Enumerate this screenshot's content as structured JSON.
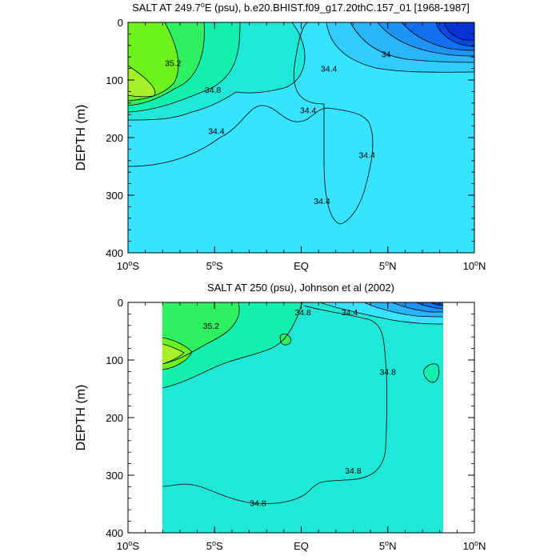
{
  "chart_data": [
    {
      "type": "contour",
      "title": "SALT AT 249.7°E (psu), b.e20.BHIST.f09_g17.20thC.157_01 [1968-1987]",
      "title_parts": {
        "pre": "SALT AT 249.7",
        "sup": "o",
        "post": "E (psu), b.e20.BHIST.f09_g17.20thC.157_01 [1968-1987]"
      },
      "ylabel": "DEPTH (m)",
      "xlim": [
        -10,
        10
      ],
      "ylim": [
        400,
        0
      ],
      "y_ticks": [
        "0",
        "100",
        "200",
        "300",
        "400"
      ],
      "x_ticks": [
        {
          "value": -10,
          "num": "10",
          "dir": "S"
        },
        {
          "value": -5,
          "num": "5",
          "dir": "S"
        },
        {
          "value": 0,
          "num": "EQ",
          "dir": ""
        },
        {
          "value": 5,
          "num": "5",
          "dir": "N"
        },
        {
          "value": 10,
          "num": "10",
          "dir": "N"
        }
      ],
      "contour_labels": [
        {
          "text": "35.2",
          "lat": -7.4,
          "depth": 70
        },
        {
          "text": "34.8",
          "lat": -5.1,
          "depth": 117
        },
        {
          "text": "34.4",
          "lat": -4.9,
          "depth": 188
        },
        {
          "text": "34.4",
          "lat": 0.4,
          "depth": 152
        },
        {
          "text": "34.4",
          "lat": 1.6,
          "depth": 80
        },
        {
          "text": "34",
          "lat": 4.9,
          "depth": 55
        },
        {
          "text": "34.4",
          "lat": 3.8,
          "depth": 230
        },
        {
          "text": "34.4",
          "lat": 1.2,
          "depth": 310
        }
      ],
      "colors": [
        "#0b45e6",
        "#1070f0",
        "#1e95f6",
        "#2ab5fa",
        "#32cdfd",
        "#37e4ff",
        "#1fe8d6",
        "#12f0b0",
        "#2ef060",
        "#6ef21c",
        "#a6f22a"
      ]
    },
    {
      "type": "contour",
      "title": "SALT AT 250 (psu), Johnson et al (2002)",
      "ylabel": "DEPTH (m)",
      "xlim": [
        -10,
        10
      ],
      "ylim": [
        400,
        0
      ],
      "data_lat_range": [
        -8,
        8.2
      ],
      "y_ticks": [
        "0",
        "100",
        "200",
        "300",
        "400"
      ],
      "x_ticks": [
        {
          "value": -10,
          "num": "10",
          "dir": "S"
        },
        {
          "value": -5,
          "num": "5",
          "dir": "S"
        },
        {
          "value": 0,
          "num": "EQ",
          "dir": ""
        },
        {
          "value": 5,
          "num": "5",
          "dir": "N"
        },
        {
          "value": 10,
          "num": "10",
          "dir": "N"
        }
      ],
      "contour_labels": [
        {
          "text": "35.2",
          "lat": -5.2,
          "depth": 40
        },
        {
          "text": "34.8",
          "lat": 0.1,
          "depth": 17
        },
        {
          "text": "34.4",
          "lat": 2.8,
          "depth": 17
        },
        {
          "text": "34.8",
          "lat": 5.0,
          "depth": 120
        },
        {
          "text": "34.8",
          "lat": 3.0,
          "depth": 292
        },
        {
          "text": "34.8",
          "lat": -2.5,
          "depth": 348
        }
      ]
    }
  ]
}
